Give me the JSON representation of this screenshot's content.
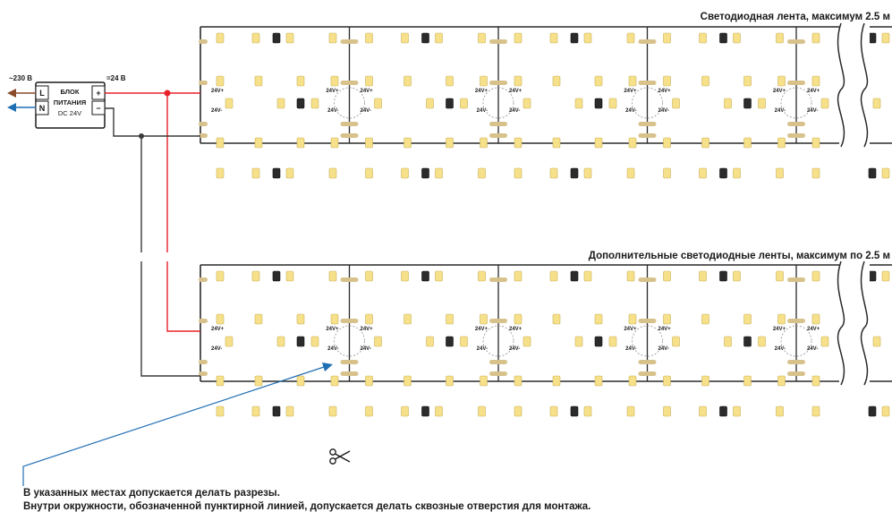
{
  "strip_top_title": "Светодиодная лента, максимум 2.5 м",
  "strip_bottom_title": "Дополнительные светодиодные ленты, максимум по 2.5 м",
  "power_supply": {
    "label_line1": "БЛОК",
    "label_line2": "ПИТАНИЯ",
    "label_line3": "DC 24V",
    "terminal_l": "L",
    "terminal_n": "N",
    "terminal_plus": "+",
    "terminal_minus": "−",
    "input_voltage": "~230 В",
    "output_voltage": "=24 В"
  },
  "pad_plus_label": "24V+",
  "pad_minus_label": "24V-",
  "notes": {
    "line1": "В указанных местах допускается делать разрезы.",
    "line2": "Внутри окружности, обозначенной пунктирной линией, допускается делать сквозные отверстия для монтажа."
  },
  "colors": {
    "led_warm": "#f7e08a",
    "led_dark": "#2b2b2b",
    "pad_gold": "#d8c28c",
    "wire_red": "#e8202a",
    "wire_dark": "#3a3a3a",
    "arrow_brown": "#8a4b2a",
    "arrow_blue": "#1f6fb5",
    "pointer_blue": "#1f6fb5"
  },
  "icons": {
    "scissors": "scissors-icon"
  }
}
